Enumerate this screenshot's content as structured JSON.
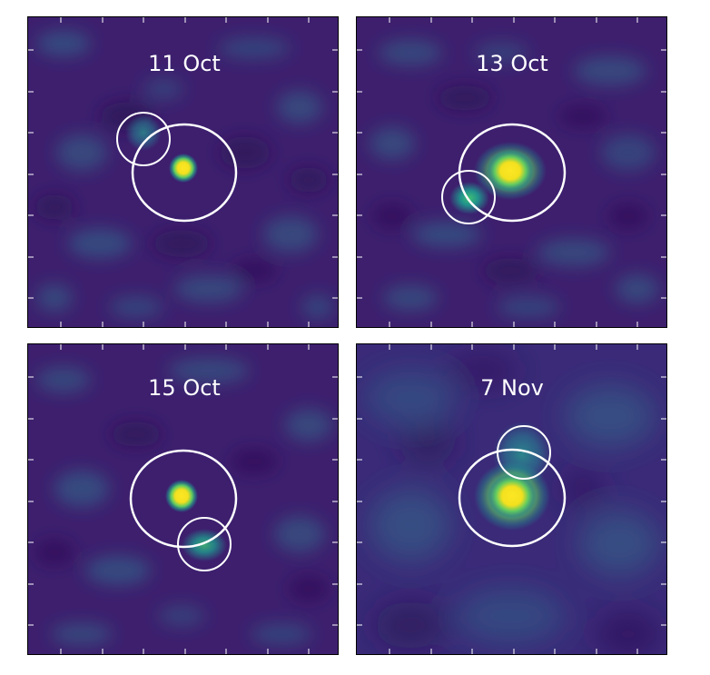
{
  "panels": [
    {
      "title": "11 Oct"
    },
    {
      "title": "13 Oct"
    },
    {
      "title": "15 Oct"
    },
    {
      "title": "7 Nov"
    }
  ],
  "colors": {
    "background": "#3d1f6e",
    "mottle_teal": "#2f6f8e",
    "mottle_dark": "#2a0c4e",
    "source_bright": "#fde725",
    "source_mid": "#5ec962",
    "source_faint": "#21918c",
    "aperture": "#ffffff",
    "frame": "#000000"
  }
}
